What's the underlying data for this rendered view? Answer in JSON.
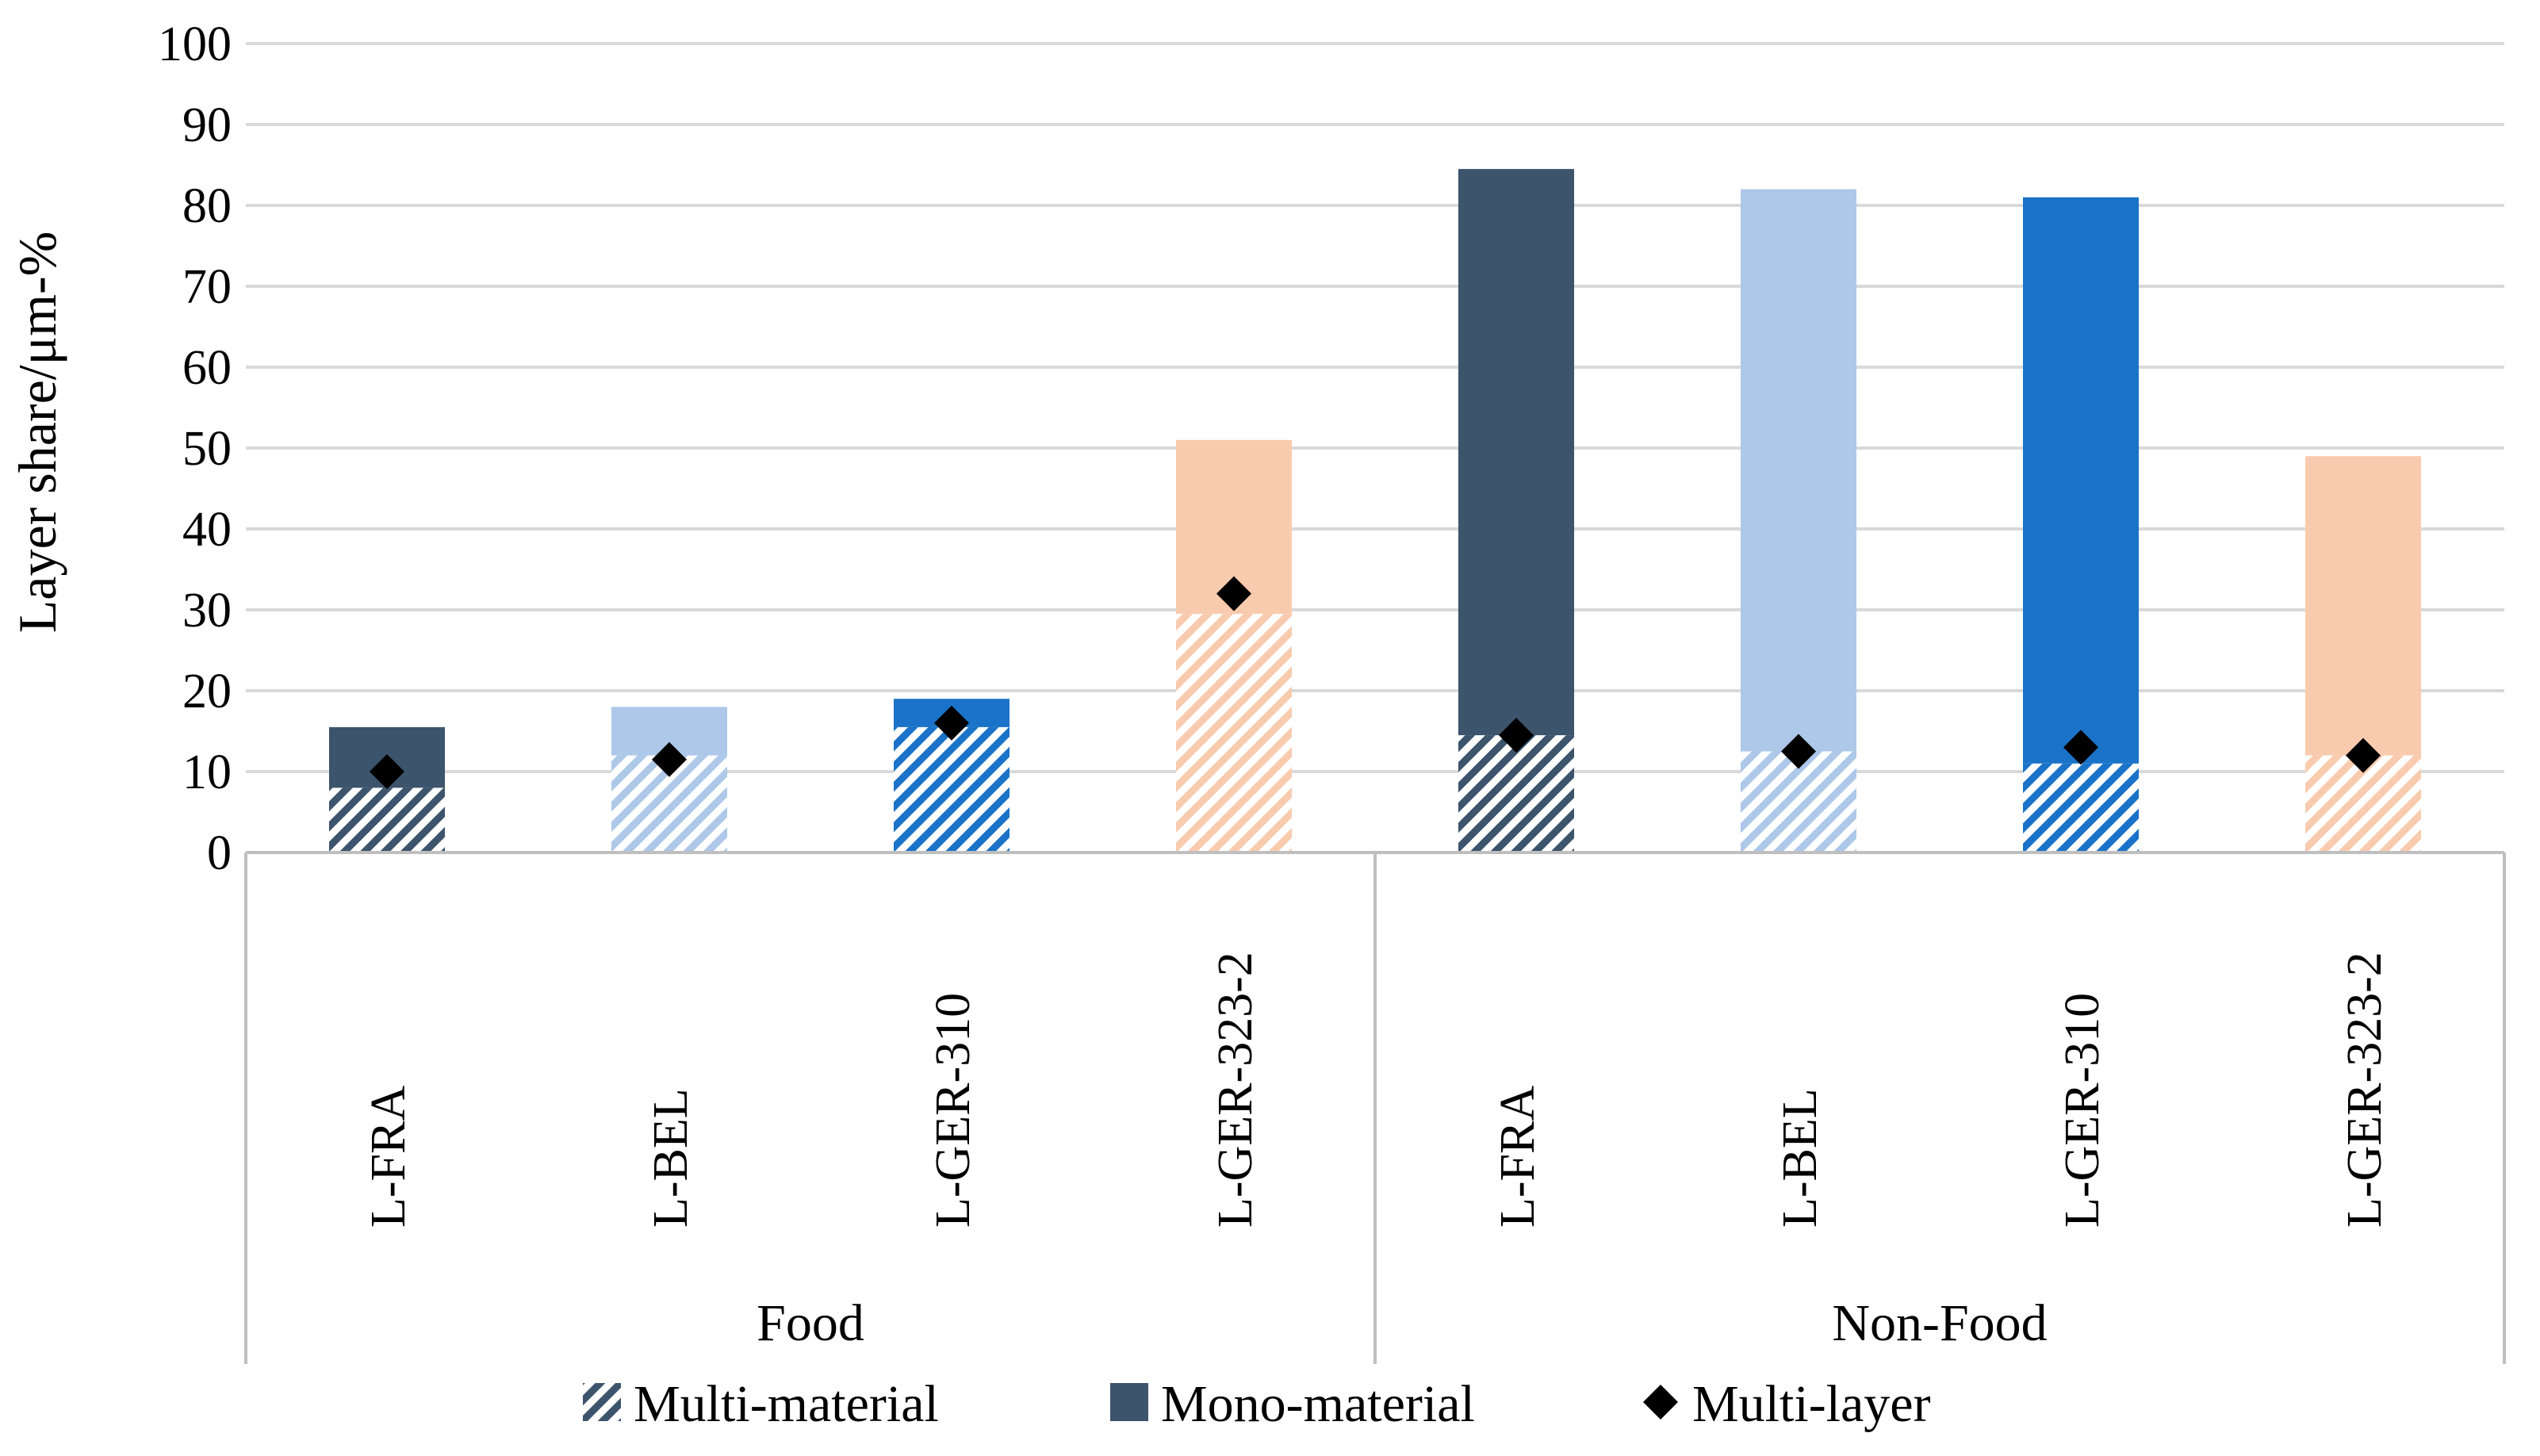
{
  "chart_data": {
    "type": "bar",
    "stacked": true,
    "ylabel": "Layer share/μm-%",
    "ylim": [
      0,
      100
    ],
    "yticks": [
      0,
      10,
      20,
      30,
      40,
      50,
      60,
      70,
      80,
      90,
      100
    ],
    "grid": true,
    "legend_position": "bottom",
    "groups": [
      {
        "name": "Food",
        "categories": [
          "L-FRA",
          "L-BEL",
          "L-GER-310",
          "L-GER-323-2"
        ]
      },
      {
        "name": "Non-Food",
        "categories": [
          "L-FRA",
          "L-BEL",
          "L-GER-310",
          "L-GER-323-2"
        ]
      }
    ],
    "category_colors": {
      "L-FRA": "#3C546C",
      "L-BEL": "#ADC8E8",
      "L-GER-310": "#1A73C8",
      "L-GER-323-2": "#F9CBAE"
    },
    "series": [
      {
        "name": "Multi-material",
        "style": "hatched",
        "values": [
          8,
          12,
          15.5,
          29.5,
          14.5,
          12.5,
          11,
          12
        ]
      },
      {
        "name": "Mono-material",
        "style": "solid",
        "values": [
          7.5,
          6,
          3.5,
          21.5,
          70,
          69.5,
          70,
          37
        ]
      },
      {
        "name": "Multi-layer",
        "style": "diamond",
        "values": [
          10,
          11.5,
          16,
          32,
          14.5,
          12.5,
          13,
          12
        ]
      }
    ]
  },
  "legend": [
    {
      "label": "Multi-material",
      "icon": "hatched-square",
      "color": "#3C546C"
    },
    {
      "label": "Mono-material",
      "icon": "solid-square",
      "color": "#3C546C"
    },
    {
      "label": "Multi-layer",
      "icon": "diamond",
      "color": "#000000"
    }
  ]
}
